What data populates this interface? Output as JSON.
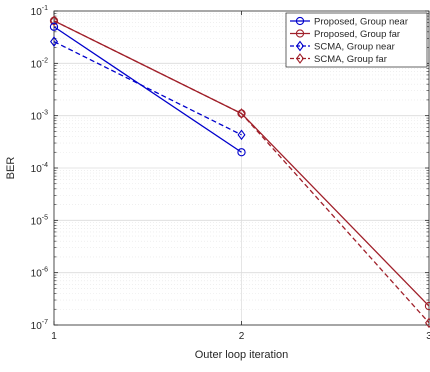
{
  "chart_data": {
    "type": "line",
    "xlabel": "Outer loop iteration",
    "ylabel": "BER",
    "yscale": "log",
    "xlim": [
      1,
      3
    ],
    "ylim": [
      1e-07,
      0.1
    ],
    "grid": true,
    "legend_position": "top-right",
    "x_ticks": [
      {
        "value": 1,
        "label": "1"
      },
      {
        "value": 2,
        "label": "2"
      },
      {
        "value": 3,
        "label": "3"
      }
    ],
    "y_ticks": [
      {
        "value": 1e-07,
        "base": "10",
        "exp": "-7"
      },
      {
        "value": 1e-06,
        "base": "10",
        "exp": "-6"
      },
      {
        "value": 1e-05,
        "base": "10",
        "exp": "-5"
      },
      {
        "value": 0.0001,
        "base": "10",
        "exp": "-4"
      },
      {
        "value": 0.001,
        "base": "10",
        "exp": "-3"
      },
      {
        "value": 0.01,
        "base": "10",
        "exp": "-2"
      },
      {
        "value": 0.1,
        "base": "10",
        "exp": "-1"
      }
    ],
    "series": [
      {
        "name": "Proposed, Group near",
        "color": "#0000cc",
        "marker": "circle",
        "dashed": false,
        "x": [
          1,
          2
        ],
        "y": [
          0.05,
          0.0002
        ]
      },
      {
        "name": "Proposed, Group far",
        "color": "#a0202a",
        "marker": "circle",
        "dashed": false,
        "x": [
          1,
          2,
          3
        ],
        "y": [
          0.065,
          0.0011,
          2.3e-07
        ]
      },
      {
        "name": "SCMA, Group near",
        "color": "#0000cc",
        "marker": "diamond",
        "dashed": true,
        "x": [
          1,
          2
        ],
        "y": [
          0.026,
          0.00043
        ]
      },
      {
        "name": "SCMA, Group far",
        "color": "#a0202a",
        "marker": "diamond",
        "dashed": true,
        "x": [
          1,
          2,
          3
        ],
        "y": [
          0.065,
          0.0011,
          1.1e-07
        ]
      }
    ]
  }
}
